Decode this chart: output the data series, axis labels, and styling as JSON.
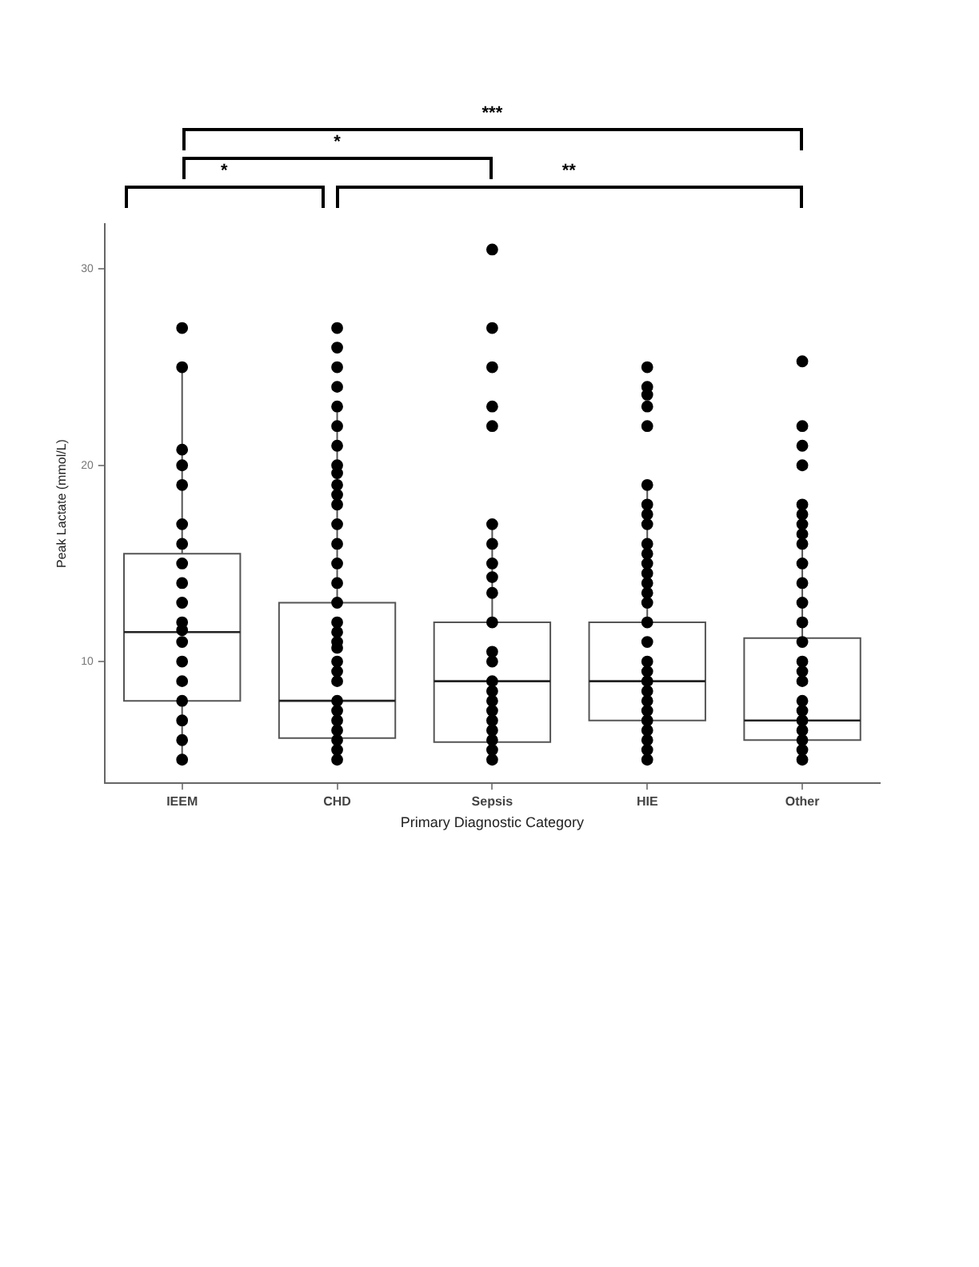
{
  "chart_data": {
    "type": "box",
    "xlabel": "Primary Diagnostic Category",
    "ylabel": "Peak Lactate (mmol/L)",
    "categories": [
      "IEEM",
      "CHD",
      "Sepsis",
      "HIE",
      "Other"
    ],
    "ylim": [
      3.8,
      32.3
    ],
    "yticks": [
      10,
      20,
      30
    ],
    "grid": false,
    "legend": false,
    "boxes": [
      {
        "low": 5,
        "q1": 8,
        "median": 11.5,
        "q3": 15.5,
        "high": 25
      },
      {
        "low": 5,
        "q1": 6.1,
        "median": 8,
        "q3": 13,
        "high": 23
      },
      {
        "low": 5,
        "q1": 5.9,
        "median": 9,
        "q3": 12,
        "high": 17
      },
      {
        "low": 5,
        "q1": 7,
        "median": 9,
        "q3": 12,
        "high": 19
      },
      {
        "low": 5,
        "q1": 6,
        "median": 7,
        "q3": 11.2,
        "high": 18
      }
    ],
    "series": [
      {
        "type": "scatter",
        "color": "#000000",
        "marker": "circle",
        "x": [
          "IEEM",
          "IEEM",
          "IEEM",
          "IEEM",
          "IEEM",
          "IEEM",
          "IEEM",
          "IEEM",
          "IEEM",
          "IEEM",
          "IEEM",
          "IEEM",
          "IEEM",
          "IEEM",
          "IEEM",
          "IEEM",
          "IEEM",
          "IEEM",
          "IEEM",
          "IEEM"
        ],
        "values": [
          27,
          25,
          20.8,
          20,
          19,
          17,
          16,
          15,
          14,
          13,
          null,
          12,
          11.6,
          11,
          10,
          9,
          8,
          7,
          6,
          5
        ]
      },
      {
        "type": "scatter",
        "color": "#000000",
        "marker": "circle",
        "x": [
          "CHD",
          "CHD",
          "CHD",
          "CHD",
          "CHD",
          "CHD",
          "CHD",
          "CHD",
          "CHD",
          "CHD",
          "CHD",
          "CHD",
          "CHD",
          "CHD",
          "CHD",
          "CHD",
          "CHD",
          "CHD",
          "CHD",
          "CHD",
          "CHD",
          "CHD",
          "CHD",
          "CHD",
          "CHD",
          "CHD",
          "CHD",
          "CHD",
          "CHD",
          "CHD",
          "CHD"
        ],
        "values": [
          27,
          26,
          25,
          24,
          23,
          22,
          21,
          20,
          19.6,
          19,
          18.5,
          18,
          17,
          16,
          15,
          14,
          13,
          12,
          11.5,
          11,
          10.7,
          10,
          9.5,
          9,
          8,
          7.5,
          7,
          6.5,
          6,
          5.5,
          5
        ]
      },
      {
        "type": "scatter",
        "color": "#000000",
        "marker": "circle",
        "x": [
          "Sepsis",
          "Sepsis",
          "Sepsis",
          "Sepsis",
          "Sepsis",
          "Sepsis",
          "Sepsis",
          "Sepsis",
          "Sepsis",
          "Sepsis",
          "Sepsis",
          "Sepsis",
          "Sepsis",
          "Sepsis",
          "Sepsis",
          "Sepsis",
          "Sepsis",
          "Sepsis",
          "Sepsis",
          "Sepsis",
          "Sepsis",
          "Sepsis"
        ],
        "values": [
          31,
          27,
          25,
          23,
          22,
          17,
          16,
          15,
          14.3,
          13.5,
          12,
          10.5,
          10,
          9,
          8.5,
          8,
          7.5,
          7,
          6.5,
          6,
          5.5,
          5
        ]
      },
      {
        "type": "scatter",
        "color": "#000000",
        "marker": "circle",
        "x": [
          "HIE",
          "HIE",
          "HIE",
          "HIE",
          "HIE",
          "HIE",
          "HIE",
          "HIE",
          "HIE",
          "HIE",
          "HIE",
          "HIE",
          "HIE",
          "HIE",
          "HIE",
          "HIE",
          "HIE",
          "HIE",
          "HIE",
          "HIE",
          "HIE",
          "HIE",
          "HIE",
          "HIE",
          "HIE",
          "HIE",
          "HIE",
          "HIE",
          "HIE"
        ],
        "values": [
          25,
          24,
          23.6,
          23,
          22,
          19,
          18,
          17.5,
          17,
          16,
          15.5,
          15,
          14.5,
          14,
          13.5,
          13,
          12,
          11,
          10,
          9.5,
          9,
          8.5,
          8,
          7.5,
          7,
          6.5,
          6,
          5.5,
          5
        ]
      },
      {
        "type": "scatter",
        "color": "#000000",
        "marker": "circle",
        "x": [
          "Other",
          "Other",
          "Other",
          "Other",
          "Other",
          "Other",
          "Other",
          "Other",
          "Other",
          "Other",
          "Other",
          "Other",
          "Other",
          "Other",
          "Other",
          "Other",
          "Other",
          "Other",
          "Other",
          "Other",
          "Other",
          "Other",
          "Other",
          "Other"
        ],
        "values": [
          25.3,
          22,
          21,
          20,
          18,
          17.5,
          17,
          16.5,
          16,
          15,
          14,
          13,
          12,
          11,
          10,
          9.5,
          9,
          8,
          7.5,
          7,
          6.5,
          6,
          5.5,
          5
        ]
      }
    ],
    "annotations": [
      "***",
      "*",
      "*",
      "**"
    ]
  }
}
